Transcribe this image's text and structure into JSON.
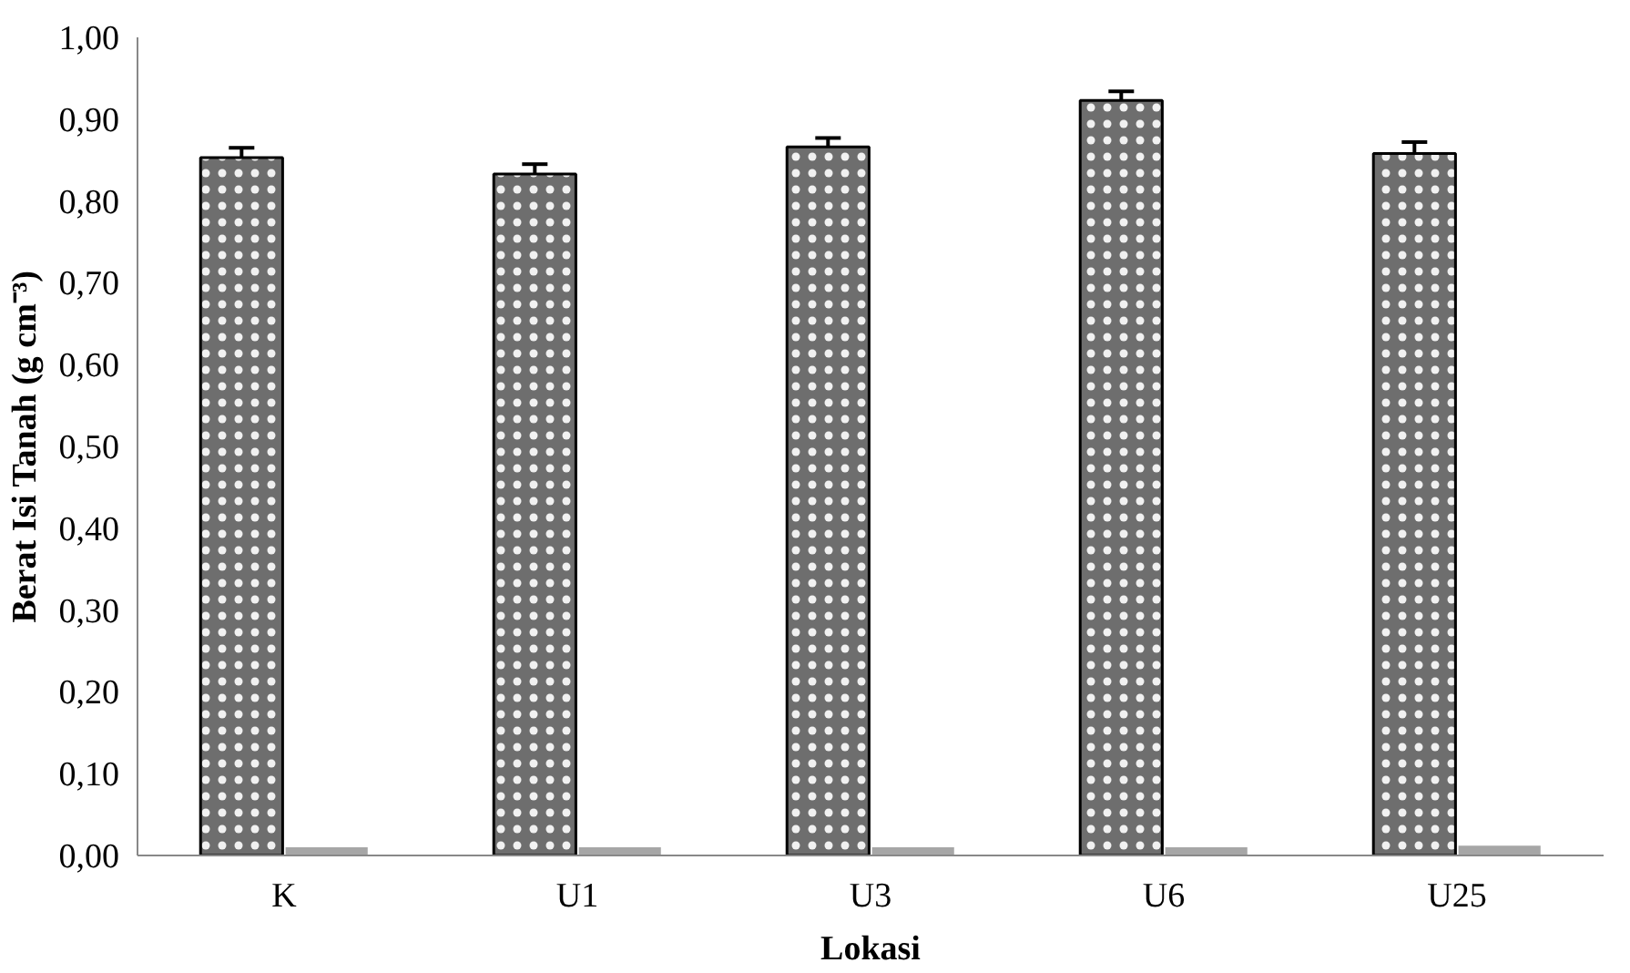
{
  "chart_data": {
    "type": "bar",
    "xlabel": "Lokasi",
    "ylabel": "Berat Isi Tanah (g cm⁻³)",
    "categories": [
      "K",
      "U1",
      "U3",
      "U6",
      "U25"
    ],
    "series": [
      {
        "color": "#6e6e6e",
        "values": [
          0.853,
          0.833,
          0.866,
          0.923,
          0.858
        ],
        "errors": [
          0.012,
          0.012,
          0.011,
          0.011,
          0.014
        ]
      },
      {
        "color": "#a6a6a6",
        "values": [
          0.01,
          0.01,
          0.01,
          0.01,
          0.012
        ]
      }
    ],
    "ylim": [
      0,
      1.0
    ],
    "yticks": [
      {
        "value": 0,
        "label": "0,00"
      },
      {
        "value": 0.1,
        "label": "0,10"
      },
      {
        "value": 0.2,
        "label": "0,20"
      },
      {
        "value": 0.3,
        "label": "0,30"
      },
      {
        "value": 0.4,
        "label": "0,40"
      },
      {
        "value": 0.5,
        "label": "0,50"
      },
      {
        "value": 0.6,
        "label": "0,60"
      },
      {
        "value": 0.7,
        "label": "0,70"
      },
      {
        "value": 0.8,
        "label": "0,80"
      },
      {
        "value": 0.9,
        "label": "0,90"
      },
      {
        "value": 1.0,
        "label": "1,00"
      }
    ],
    "grid": false
  }
}
